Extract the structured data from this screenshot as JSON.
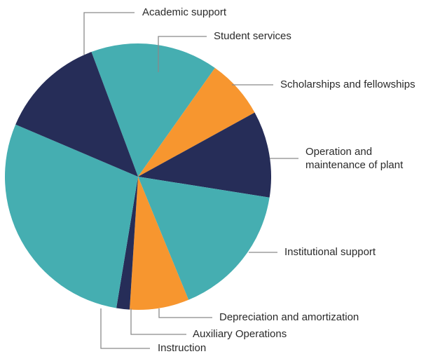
{
  "chart_data": {
    "type": "pie",
    "title": "",
    "legend": "none",
    "slices": [
      {
        "label": "Student services",
        "value": 15.5,
        "color": "#45aeb1"
      },
      {
        "label": "Scholarships and fellowships",
        "value": 7.2,
        "color": "#f7962f"
      },
      {
        "label": [
          "Operation and",
          "maintenance of plant"
        ],
        "value": 10.5,
        "color": "#262d58"
      },
      {
        "label": "Institutional support",
        "value": 16.3,
        "color": "#45aeb1"
      },
      {
        "label": "Depreciation and amortization",
        "value": 7.2,
        "color": "#f7962f"
      },
      {
        "label": "Auxiliary Operations",
        "value": 1.6,
        "color": "#262d58"
      },
      {
        "label": "Instruction",
        "value": 28.8,
        "color": "#45aeb1"
      },
      {
        "label": "Academic support",
        "value": 12.9,
        "color": "#262d58"
      }
    ],
    "start_angle_deg": -20.5
  }
}
